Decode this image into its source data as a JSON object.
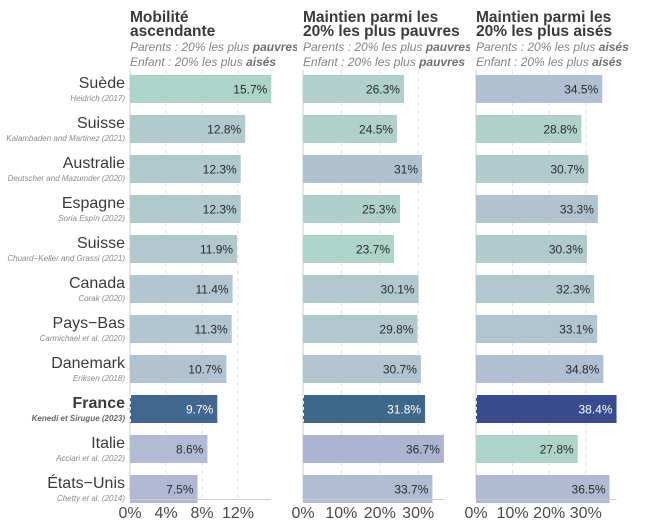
{
  "chart_data": {
    "type": "bar",
    "orientation": "horizontal",
    "categories": [
      "Suède",
      "Suisse",
      "Australie",
      "Espagne",
      "Suisse",
      "Canada",
      "Pays−Bas",
      "Danemark",
      "France",
      "Italie",
      "États−Unis"
    ],
    "citations": [
      "Heidrich (2017)",
      "Kalambaden and Martinez (2021)",
      "Deutscher and Mazumder (2020)",
      "Soria Espín (2022)",
      "Chuard−Keller and Grassi (2021)",
      "Corak (2020)",
      "Carmichael et al. (2020)",
      "Eriksen (2018)",
      "Kenedi et Sirugue (2023)",
      "Acciari et al. (2022)",
      "Chetty et al. (2014)"
    ],
    "highlight": "France",
    "grid": true,
    "panels": [
      {
        "title": [
          "Mobilité",
          "ascendante"
        ],
        "subtitle": [
          {
            "prefix": "Parents : 20% les plus ",
            "bold": "pauvres"
          },
          {
            "prefix": "Enfant : 20% les plus ",
            "bold": "aisés"
          }
        ],
        "values": [
          15.7,
          12.8,
          12.3,
          12.3,
          11.9,
          11.4,
          11.3,
          10.7,
          9.7,
          8.6,
          7.5
        ],
        "labels": [
          "15.7%",
          "12.8%",
          "12.3%",
          "12.3%",
          "11.9%",
          "11.4%",
          "11.3%",
          "10.7%",
          "9.7%",
          "8.6%",
          "7.5%"
        ],
        "colors": [
          "#aed3c8",
          "#b0cacd",
          "#b0c9cd",
          "#b0c9cd",
          "#b1c8cf",
          "#b1c6d0",
          "#b1c6d0",
          "#b1c2d1",
          "#416690",
          "#b1bbd3",
          "#b0b8d4"
        ],
        "xticks": [
          0,
          4,
          8,
          12
        ],
        "xtick_labels": [
          "0%",
          "4%",
          "8%",
          "12%"
        ],
        "xlim": [
          0,
          15.7
        ]
      },
      {
        "title": [
          "Maintien parmi les",
          "20% les plus pauvres"
        ],
        "subtitle": [
          {
            "prefix": "Parents : 20% les plus ",
            "bold": "pauvres"
          },
          {
            "prefix": "Enfant : 20% les plus ",
            "bold": "pauvres"
          }
        ],
        "values": [
          26.3,
          24.5,
          31,
          25.3,
          23.7,
          30.1,
          29.8,
          30.7,
          31.8,
          36.7,
          33.7
        ],
        "labels": [
          "26.3%",
          "24.5%",
          "31%",
          "25.3%",
          "23.7%",
          "30.1%",
          "29.8%",
          "30.7%",
          "31.8%",
          "36.7%",
          "33.7%"
        ],
        "colors": [
          "#b1cfcb",
          "#afd1c9",
          "#b0c2d0",
          "#afcfca",
          "#aed3c8",
          "#b1c8cf",
          "#b1c9ce",
          "#b1c4cf",
          "#3e6889",
          "#adb4d2",
          "#b0bcd2"
        ],
        "xticks": [
          0,
          10,
          20,
          30
        ],
        "xtick_labels": [
          "0%",
          "10%",
          "20%",
          "30%"
        ],
        "xlim": [
          0,
          36.7
        ]
      },
      {
        "title": [
          "Maintien parmi les",
          "20% les plus aisés"
        ],
        "subtitle": [
          {
            "prefix": "Parents : 20% les plus ",
            "bold": "aisés"
          },
          {
            "prefix": "Enfant : 20% les plus ",
            "bold": "aisés"
          }
        ],
        "values": [
          34.5,
          28.8,
          30.7,
          33.3,
          30.3,
          32.3,
          33.1,
          34.8,
          38.4,
          27.8,
          36.5
        ],
        "labels": [
          "34.5%",
          "28.8%",
          "30.7%",
          "33.3%",
          "30.3%",
          "32.3%",
          "33.1%",
          "34.8%",
          "38.4%",
          "27.8%",
          "36.5%"
        ],
        "colors": [
          "#b0bfd1",
          "#afd1c9",
          "#b1cbcd",
          "#b1c3cf",
          "#b1cbcd",
          "#b1c8cf",
          "#b1c5d0",
          "#b0bfd1",
          "#384c8d",
          "#aed3c8",
          "#b0bad3"
        ],
        "xticks": [
          0,
          10,
          20,
          30
        ],
        "xtick_labels": [
          "0%",
          "10%",
          "20%",
          "30%"
        ],
        "xlim": [
          0,
          38.4
        ]
      }
    ],
    "title": "",
    "xlabel": "",
    "ylabel": ""
  }
}
